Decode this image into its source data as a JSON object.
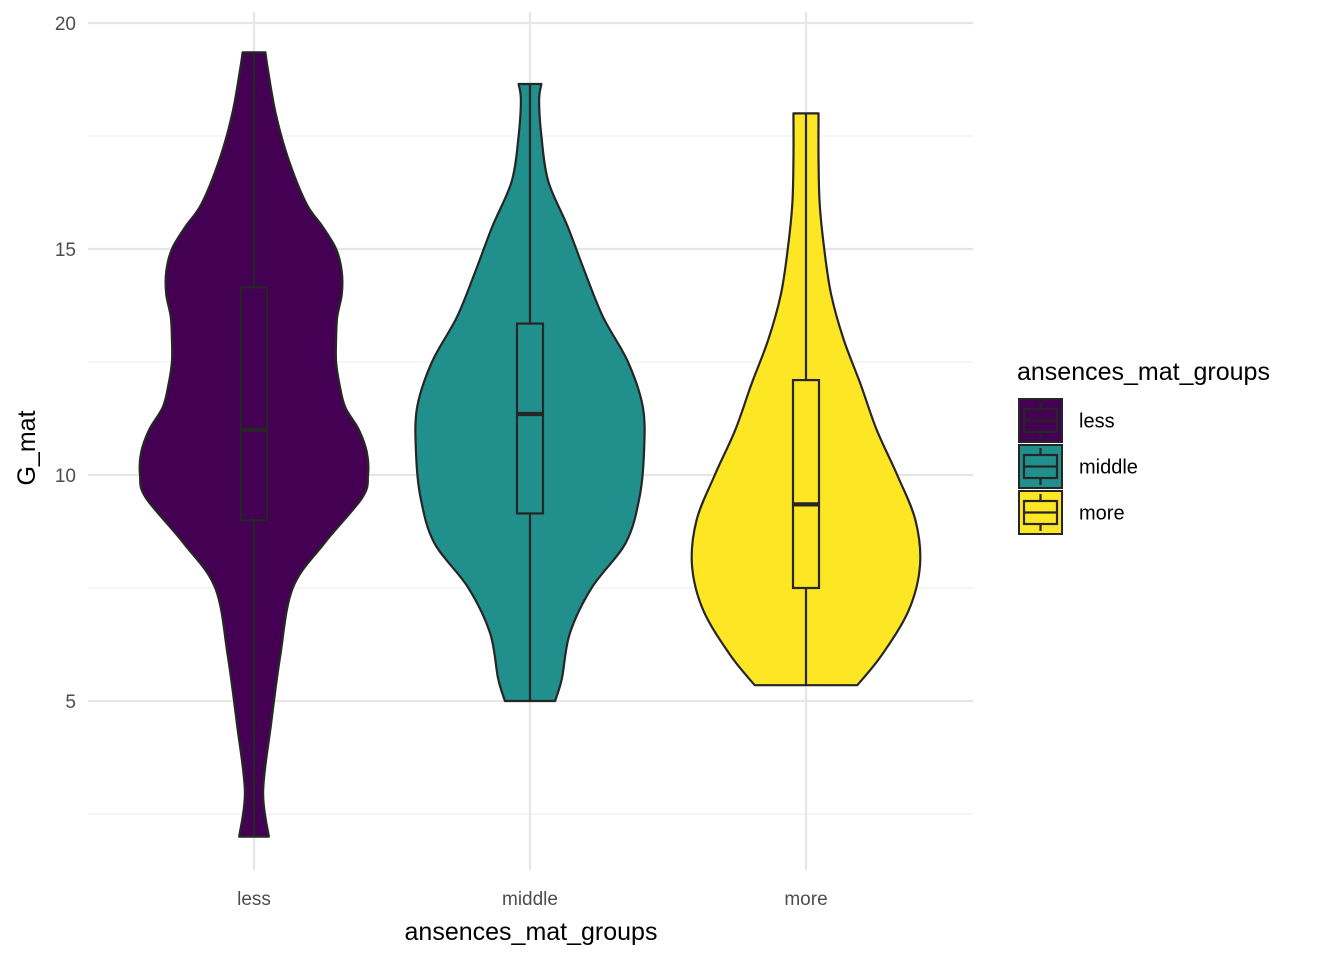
{
  "chart_data": {
    "type": "violin",
    "xlabel": "ansences_mat_groups",
    "ylabel": "G_mat",
    "categories": [
      "less",
      "middle",
      "more"
    ],
    "ylim": [
      1.5,
      20.2
    ],
    "yticks": [
      5,
      10,
      15,
      20
    ],
    "yticks_minor": [
      2.5,
      7.5,
      12.5,
      17.5
    ],
    "grid": true,
    "legend": {
      "title": "ansences_mat_groups",
      "position": "right",
      "entries": [
        "less",
        "middle",
        "more"
      ]
    },
    "series": [
      {
        "category": "less",
        "color": "#440154",
        "min": 2.0,
        "q1": 9.0,
        "median": 11.0,
        "q3": 14.15,
        "max": 19.35,
        "density": [
          [
            2.0,
            0.13
          ],
          [
            3.0,
            0.08
          ],
          [
            4.5,
            0.15
          ],
          [
            6.0,
            0.23
          ],
          [
            7.5,
            0.34
          ],
          [
            8.5,
            0.62
          ],
          [
            9.5,
            0.95
          ],
          [
            10.0,
            1.0
          ],
          [
            10.5,
            0.99
          ],
          [
            11.0,
            0.92
          ],
          [
            11.5,
            0.8
          ],
          [
            12.0,
            0.75
          ],
          [
            12.5,
            0.72
          ],
          [
            13.0,
            0.72
          ],
          [
            13.5,
            0.73
          ],
          [
            14.0,
            0.77
          ],
          [
            14.5,
            0.77
          ],
          [
            15.0,
            0.72
          ],
          [
            15.5,
            0.6
          ],
          [
            16.0,
            0.46
          ],
          [
            17.0,
            0.3
          ],
          [
            18.0,
            0.19
          ],
          [
            19.0,
            0.12
          ],
          [
            19.35,
            0.1
          ]
        ]
      },
      {
        "category": "middle",
        "color": "#21908c",
        "min": 5.0,
        "q1": 9.15,
        "median": 11.35,
        "q3": 13.35,
        "max": 18.65,
        "density": [
          [
            5.0,
            0.22
          ],
          [
            5.5,
            0.28
          ],
          [
            6.5,
            0.35
          ],
          [
            7.5,
            0.54
          ],
          [
            8.5,
            0.84
          ],
          [
            9.5,
            0.96
          ],
          [
            10.5,
            1.0
          ],
          [
            11.5,
            0.99
          ],
          [
            12.5,
            0.86
          ],
          [
            13.5,
            0.64
          ],
          [
            14.5,
            0.48
          ],
          [
            15.5,
            0.33
          ],
          [
            16.5,
            0.16
          ],
          [
            17.5,
            0.1
          ],
          [
            18.3,
            0.08
          ],
          [
            18.65,
            0.1
          ]
        ]
      },
      {
        "category": "more",
        "color": "#fde725",
        "min": 5.35,
        "q1": 7.5,
        "median": 9.35,
        "q3": 12.1,
        "max": 18.0,
        "density": [
          [
            5.35,
            0.45
          ],
          [
            6.0,
            0.66
          ],
          [
            7.0,
            0.9
          ],
          [
            8.0,
            1.0
          ],
          [
            9.0,
            0.96
          ],
          [
            10.0,
            0.8
          ],
          [
            11.0,
            0.62
          ],
          [
            12.0,
            0.48
          ],
          [
            13.0,
            0.33
          ],
          [
            14.0,
            0.22
          ],
          [
            15.0,
            0.16
          ],
          [
            16.0,
            0.12
          ],
          [
            17.0,
            0.11
          ],
          [
            18.0,
            0.11
          ]
        ]
      }
    ]
  }
}
